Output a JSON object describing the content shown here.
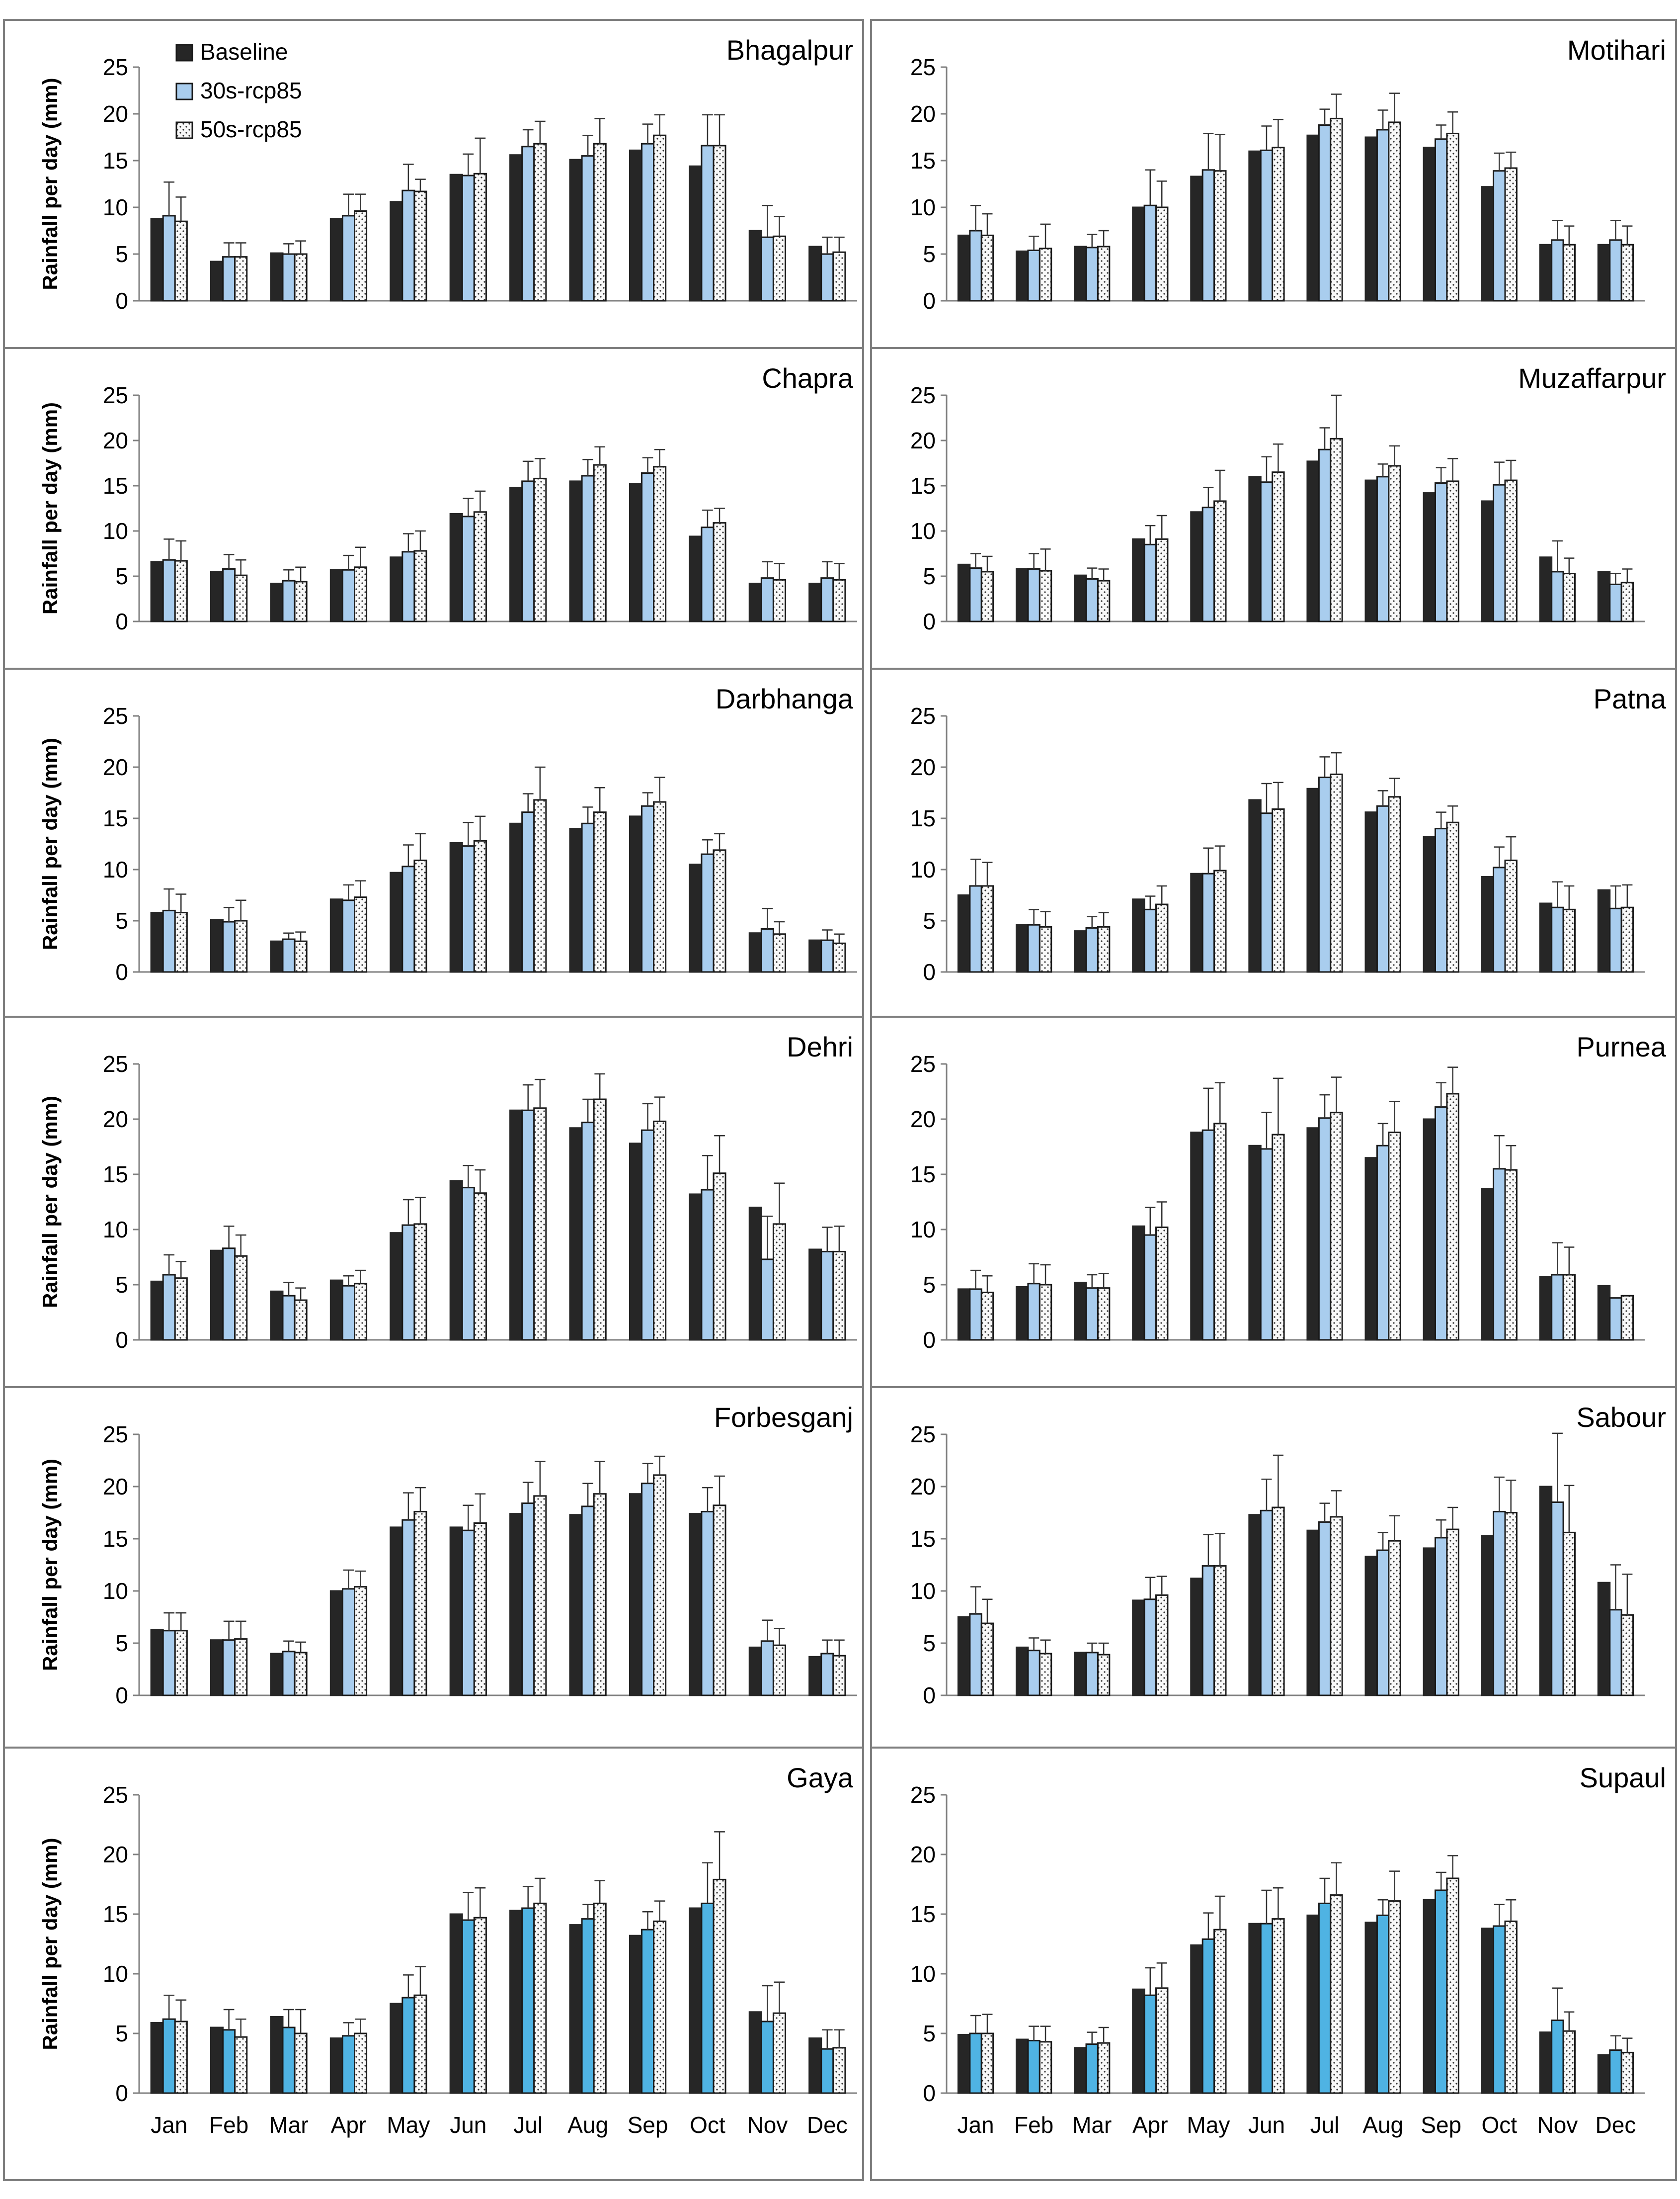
{
  "chart_data": {
    "type": "bar",
    "months": [
      "Jan",
      "Feb",
      "Mar",
      "Apr",
      "May",
      "Jun",
      "Jul",
      "Aug",
      "Sep",
      "Oct",
      "Nov",
      "Dec"
    ],
    "ylabel": "Rainfall per day (mm)",
    "ylim": [
      0,
      25
    ],
    "yticks": [
      0,
      5,
      10,
      15,
      20,
      25
    ],
    "legend": [
      "Baseline",
      "30s-rcp85",
      "50s-rcp85"
    ],
    "colors": {
      "baseline": "#262626",
      "rcp30": "#a9cdee",
      "rcp30_alt": "#4fb3e3",
      "rcp50": "#f8f8f8",
      "dots": "#333333"
    },
    "panels": [
      {
        "title": "Bhagalpur",
        "baseline": [
          8.8,
          4.2,
          5.1,
          8.8,
          10.6,
          13.5,
          15.6,
          15.1,
          16.1,
          14.4,
          7.5,
          5.8
        ],
        "rcp30": [
          9.1,
          4.7,
          5.0,
          9.1,
          11.8,
          13.4,
          16.5,
          15.5,
          16.8,
          16.6,
          6.8,
          5.0
        ],
        "rcp50": [
          8.5,
          4.7,
          5.0,
          9.6,
          11.7,
          13.6,
          16.8,
          16.8,
          17.7,
          16.6,
          6.9,
          5.2
        ],
        "err30": [
          3.6,
          1.5,
          1.1,
          2.3,
          2.8,
          2.3,
          1.8,
          2.2,
          2.1,
          3.3,
          3.4,
          1.8
        ],
        "err50": [
          2.6,
          1.5,
          1.4,
          1.8,
          1.3,
          3.8,
          2.4,
          2.7,
          2.2,
          3.3,
          2.1,
          1.6
        ]
      },
      {
        "title": "Motihari",
        "baseline": [
          7.0,
          5.3,
          5.8,
          10.0,
          13.3,
          16.0,
          17.7,
          17.5,
          16.4,
          12.2,
          6.0,
          6.0
        ],
        "rcp30": [
          7.5,
          5.4,
          5.7,
          10.2,
          14.0,
          16.1,
          18.8,
          18.3,
          17.3,
          13.9,
          6.5,
          6.5
        ],
        "rcp50": [
          7.0,
          5.6,
          5.8,
          10.0,
          13.9,
          16.4,
          19.5,
          19.1,
          17.9,
          14.2,
          6.0,
          6.0
        ],
        "err30": [
          2.7,
          1.5,
          1.4,
          3.8,
          3.9,
          2.6,
          1.7,
          2.1,
          1.5,
          1.9,
          2.1,
          2.1
        ],
        "err50": [
          2.3,
          2.6,
          1.7,
          2.8,
          3.9,
          3.0,
          2.6,
          3.1,
          2.3,
          1.7,
          2.0,
          2.0
        ]
      },
      {
        "title": "Chapra",
        "baseline": [
          6.6,
          5.5,
          4.2,
          5.7,
          7.1,
          11.9,
          14.8,
          15.5,
          15.2,
          9.4,
          4.2,
          4.2
        ],
        "rcp30": [
          6.8,
          5.8,
          4.5,
          5.7,
          7.7,
          11.6,
          15.5,
          16.1,
          16.4,
          10.4,
          4.8,
          4.8
        ],
        "rcp50": [
          6.7,
          5.1,
          4.4,
          6.0,
          7.8,
          12.1,
          15.8,
          17.3,
          17.1,
          10.9,
          4.6,
          4.6
        ],
        "err30": [
          2.3,
          1.6,
          1.2,
          1.6,
          2.0,
          2.0,
          2.2,
          1.8,
          1.7,
          1.9,
          1.8,
          1.8
        ],
        "err50": [
          2.2,
          1.7,
          1.6,
          2.2,
          2.2,
          2.3,
          2.2,
          2.0,
          1.9,
          1.6,
          1.8,
          1.8
        ]
      },
      {
        "title": "Muzaffarpur",
        "baseline": [
          6.3,
          5.8,
          5.1,
          9.1,
          12.1,
          16.0,
          17.7,
          15.6,
          14.2,
          13.3,
          7.1,
          5.5
        ],
        "rcp30": [
          5.9,
          5.8,
          4.7,
          8.5,
          12.6,
          15.4,
          19.0,
          16.0,
          15.3,
          15.1,
          5.5,
          4.1
        ],
        "rcp50": [
          5.5,
          5.6,
          4.5,
          9.1,
          13.3,
          16.5,
          20.2,
          17.2,
          15.5,
          15.6,
          5.3,
          4.3
        ],
        "err30": [
          1.6,
          1.7,
          1.2,
          2.1,
          2.2,
          2.8,
          2.4,
          1.4,
          1.7,
          2.5,
          3.4,
          1.2
        ],
        "err50": [
          1.7,
          2.4,
          1.3,
          2.6,
          3.4,
          3.1,
          4.8,
          2.2,
          2.5,
          2.2,
          1.7,
          1.5
        ]
      },
      {
        "title": "Darbhanga",
        "baseline": [
          5.8,
          5.1,
          3.0,
          7.1,
          9.7,
          12.6,
          14.5,
          14.0,
          15.2,
          10.5,
          3.8,
          3.1
        ],
        "rcp30": [
          6.0,
          4.9,
          3.2,
          7.0,
          10.3,
          12.3,
          15.6,
          14.5,
          16.2,
          11.5,
          4.2,
          3.1
        ],
        "rcp50": [
          5.8,
          5.0,
          3.0,
          7.3,
          10.9,
          12.8,
          16.8,
          15.6,
          16.6,
          11.9,
          3.7,
          2.8
        ],
        "err30": [
          2.1,
          1.4,
          0.6,
          1.5,
          2.1,
          2.3,
          1.8,
          1.6,
          1.3,
          1.4,
          2.0,
          1.0
        ],
        "err50": [
          1.8,
          2.0,
          0.9,
          1.6,
          2.6,
          2.4,
          3.2,
          2.4,
          2.4,
          1.6,
          1.2,
          0.9
        ]
      },
      {
        "title": "Patna",
        "baseline": [
          7.5,
          4.6,
          4.0,
          7.1,
          9.6,
          16.8,
          17.9,
          15.6,
          13.2,
          9.3,
          6.7,
          8.0
        ],
        "rcp30": [
          8.4,
          4.6,
          4.3,
          6.1,
          9.6,
          15.5,
          19.0,
          16.2,
          14.0,
          10.2,
          6.3,
          6.2
        ],
        "rcp50": [
          8.4,
          4.4,
          4.4,
          6.6,
          9.9,
          15.9,
          19.3,
          17.1,
          14.6,
          10.9,
          6.1,
          6.3
        ],
        "err30": [
          2.6,
          1.5,
          1.1,
          1.3,
          2.5,
          2.9,
          2.0,
          1.5,
          1.6,
          2.0,
          2.5,
          2.2
        ],
        "err50": [
          2.3,
          1.5,
          1.4,
          1.8,
          2.4,
          2.6,
          2.1,
          1.8,
          1.6,
          2.3,
          2.3,
          2.2
        ]
      },
      {
        "title": "Dehri",
        "baseline": [
          5.3,
          8.1,
          4.4,
          5.4,
          9.7,
          14.4,
          20.8,
          19.2,
          17.8,
          13.2,
          12.0,
          8.2
        ],
        "rcp30": [
          5.9,
          8.3,
          4.0,
          4.9,
          10.4,
          13.8,
          20.8,
          19.7,
          19.0,
          13.6,
          7.3,
          8.0
        ],
        "rcp50": [
          5.6,
          7.6,
          3.6,
          5.1,
          10.5,
          13.3,
          21.0,
          21.8,
          19.8,
          15.1,
          10.5,
          8.0
        ],
        "err30": [
          1.8,
          2.0,
          1.2,
          0.9,
          2.3,
          2.0,
          2.3,
          2.1,
          2.4,
          3.1,
          3.9,
          2.2
        ],
        "err50": [
          1.5,
          1.9,
          1.1,
          1.2,
          2.4,
          2.1,
          2.6,
          2.3,
          2.2,
          3.4,
          3.7,
          2.3
        ]
      },
      {
        "title": "Purnea",
        "baseline": [
          4.6,
          4.8,
          5.2,
          10.3,
          18.8,
          17.6,
          19.2,
          16.5,
          20.0,
          13.7,
          5.7,
          4.9
        ],
        "rcp30": [
          4.6,
          5.1,
          4.7,
          9.5,
          19.0,
          17.3,
          20.1,
          17.6,
          21.1,
          15.5,
          5.9,
          3.8
        ],
        "rcp50": [
          4.3,
          5.0,
          4.7,
          10.2,
          19.6,
          18.6,
          20.6,
          18.8,
          22.3,
          15.4,
          5.9,
          4.0
        ],
        "err30": [
          1.7,
          1.8,
          1.2,
          2.5,
          3.8,
          3.3,
          2.1,
          2.0,
          2.2,
          3.0,
          2.9,
          0
        ],
        "err50": [
          1.5,
          1.8,
          1.3,
          2.3,
          3.7,
          5.1,
          3.2,
          2.8,
          2.4,
          2.2,
          2.5,
          0
        ]
      },
      {
        "title": "Forbesganj",
        "baseline": [
          6.3,
          5.3,
          4.0,
          10.0,
          16.1,
          16.1,
          17.4,
          17.3,
          19.3,
          17.4,
          4.6,
          3.7
        ],
        "rcp30": [
          6.2,
          5.3,
          4.2,
          10.2,
          16.8,
          15.8,
          18.4,
          18.1,
          20.3,
          17.6,
          5.2,
          4.0
        ],
        "rcp50": [
          6.2,
          5.4,
          4.1,
          10.4,
          17.6,
          16.5,
          19.1,
          19.3,
          21.1,
          18.2,
          4.8,
          3.8
        ],
        "err30": [
          1.7,
          1.8,
          1.0,
          1.8,
          2.6,
          2.4,
          2.0,
          2.2,
          1.9,
          2.3,
          2.0,
          1.3
        ],
        "err50": [
          1.7,
          1.7,
          1.0,
          1.5,
          2.3,
          2.8,
          3.3,
          3.1,
          1.8,
          2.8,
          1.6,
          1.5
        ]
      },
      {
        "title": "Sabour",
        "baseline": [
          7.5,
          4.6,
          4.1,
          9.1,
          11.2,
          17.3,
          15.8,
          13.3,
          14.1,
          15.3,
          20.0,
          10.8
        ],
        "rcp30": [
          7.8,
          4.3,
          4.1,
          9.2,
          12.4,
          17.7,
          16.6,
          13.9,
          15.1,
          17.6,
          18.5,
          8.2
        ],
        "rcp50": [
          6.9,
          4.0,
          3.9,
          9.6,
          12.4,
          18.0,
          17.1,
          14.8,
          15.9,
          17.5,
          15.6,
          7.7
        ],
        "err30": [
          2.6,
          1.2,
          0.9,
          2.1,
          3.0,
          3.0,
          1.8,
          1.7,
          1.7,
          3.3,
          6.6,
          4.3
        ],
        "err50": [
          2.3,
          1.3,
          1.1,
          1.8,
          3.1,
          5.0,
          2.5,
          2.4,
          2.1,
          3.1,
          4.5,
          3.9
        ]
      },
      {
        "title": "Gaya",
        "baseline": [
          5.9,
          5.5,
          6.4,
          4.6,
          7.5,
          15.0,
          15.3,
          14.1,
          13.2,
          15.5,
          6.8,
          4.6
        ],
        "rcp30": [
          6.2,
          5.3,
          5.5,
          4.8,
          8.0,
          14.5,
          15.5,
          14.6,
          13.7,
          15.9,
          6.0,
          3.7
        ],
        "rcp50": [
          6.0,
          4.7,
          5.0,
          5.0,
          8.2,
          14.7,
          15.9,
          15.9,
          14.4,
          17.9,
          6.7,
          3.8
        ],
        "err30": [
          2.0,
          1.7,
          1.5,
          1.1,
          1.9,
          2.3,
          1.8,
          1.2,
          1.5,
          3.4,
          3.0,
          1.6
        ],
        "err50": [
          1.8,
          1.5,
          2.0,
          1.2,
          2.4,
          2.5,
          2.1,
          1.9,
          1.7,
          4.0,
          2.6,
          1.5
        ]
      },
      {
        "title": "Supaul",
        "baseline": [
          4.9,
          4.5,
          3.8,
          8.7,
          12.4,
          14.2,
          14.9,
          14.3,
          16.2,
          13.8,
          5.1,
          3.2
        ],
        "rcp30": [
          5.0,
          4.4,
          4.1,
          8.2,
          12.9,
          14.2,
          15.9,
          14.9,
          17.0,
          14.0,
          6.1,
          3.6
        ],
        "rcp50": [
          5.0,
          4.3,
          4.2,
          8.8,
          13.7,
          14.6,
          16.6,
          16.1,
          18.0,
          14.4,
          5.2,
          3.4
        ],
        "err30": [
          1.5,
          1.2,
          1.0,
          2.3,
          2.2,
          2.8,
          2.1,
          1.3,
          1.5,
          1.8,
          2.7,
          1.2
        ],
        "err50": [
          1.6,
          1.3,
          1.3,
          2.1,
          2.8,
          2.6,
          2.7,
          2.5,
          1.9,
          1.8,
          1.6,
          1.2
        ]
      }
    ]
  }
}
